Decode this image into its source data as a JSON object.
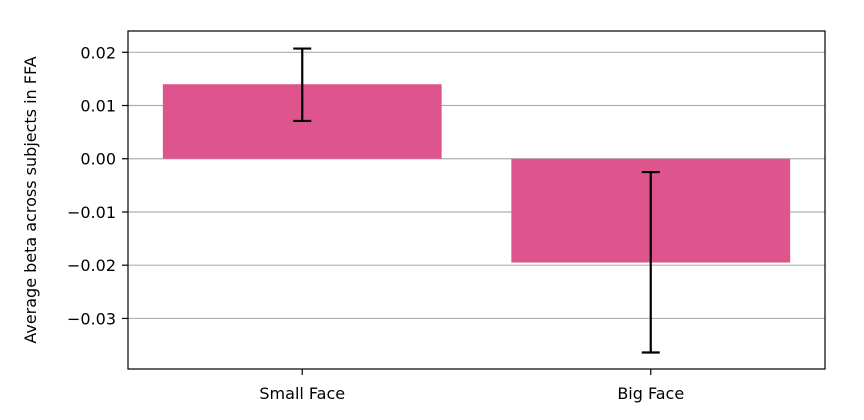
{
  "chart_data": {
    "type": "bar",
    "categories": [
      "Small Face",
      "Big Face"
    ],
    "values": [
      0.014,
      -0.0195
    ],
    "error_low": [
      0.0071,
      -0.0364
    ],
    "error_high": [
      0.0207,
      -0.0025
    ],
    "ylabel": "Average beta across subjects in FFA",
    "xlabel": "",
    "ylim": [
      -0.0395,
      0.024
    ],
    "yticks": [
      0.02,
      0.01,
      0.0,
      -0.01,
      -0.02,
      -0.03
    ],
    "ytick_labels": [
      "0.02",
      "0.01",
      "0.00",
      "−0.01",
      "−0.02",
      "−0.03"
    ],
    "grid": "y",
    "bar_color": "#de548c",
    "error_color": "#000000",
    "grid_color": "#b0b0b0"
  }
}
